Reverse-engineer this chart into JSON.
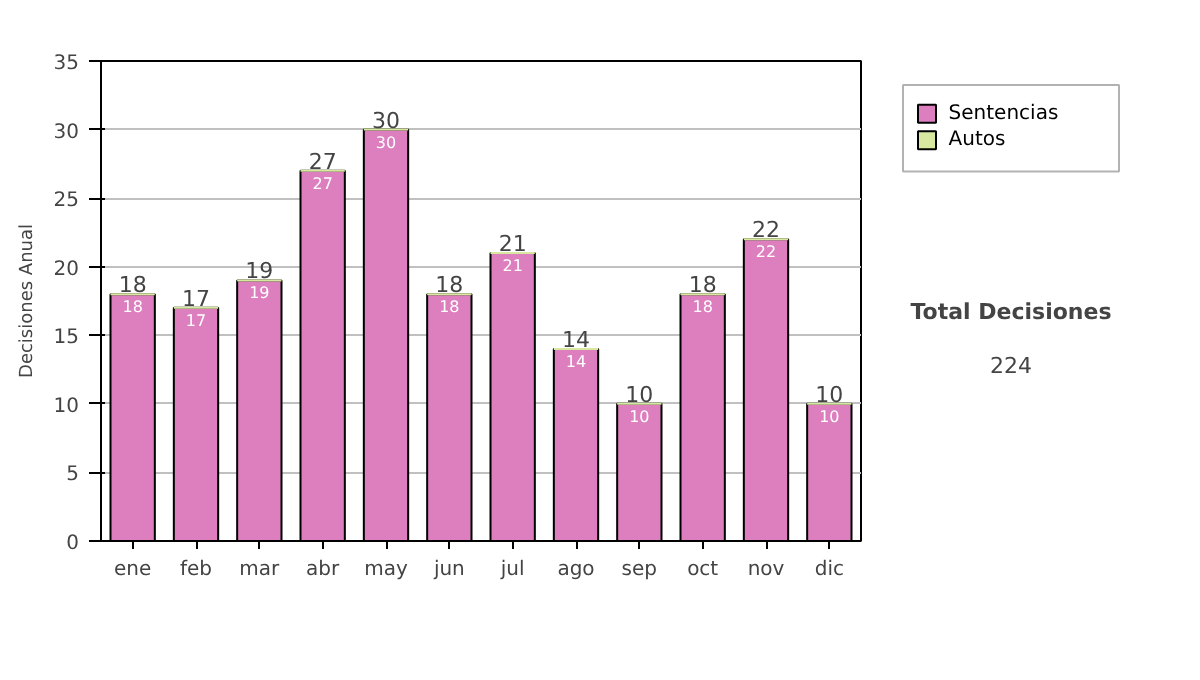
{
  "chart_data": {
    "type": "bar",
    "stacked": true,
    "ylabel": "Decisiones Anual",
    "categories": [
      "ene",
      "feb",
      "mar",
      "abr",
      "may",
      "jun",
      "jul",
      "ago",
      "sep",
      "oct",
      "nov",
      "dic"
    ],
    "series": [
      {
        "name": "Sentencias",
        "color": "#dd7fbe",
        "values": [
          18,
          17,
          19,
          27,
          30,
          18,
          21,
          14,
          10,
          18,
          22,
          10
        ],
        "value_labels": [
          "18",
          "17",
          "19",
          "27",
          "30",
          "18",
          "21",
          "14",
          "10",
          "18",
          "22",
          "10"
        ]
      },
      {
        "name": "Autos",
        "color": "#d8e8a0",
        "values": [
          0,
          0,
          0,
          0,
          0,
          0,
          0,
          0,
          0,
          0,
          0,
          0
        ]
      }
    ],
    "totals": [
      "18",
      "17",
      "19",
      "27",
      "30",
      "18",
      "21",
      "14",
      "10",
      "18",
      "22",
      "10"
    ],
    "ylim": [
      0,
      35
    ],
    "yticks": [
      0,
      5,
      10,
      15,
      20,
      25,
      30,
      35
    ],
    "grid": "y",
    "legend": "right",
    "annotations": [
      "Total Decisiones",
      "224"
    ]
  }
}
